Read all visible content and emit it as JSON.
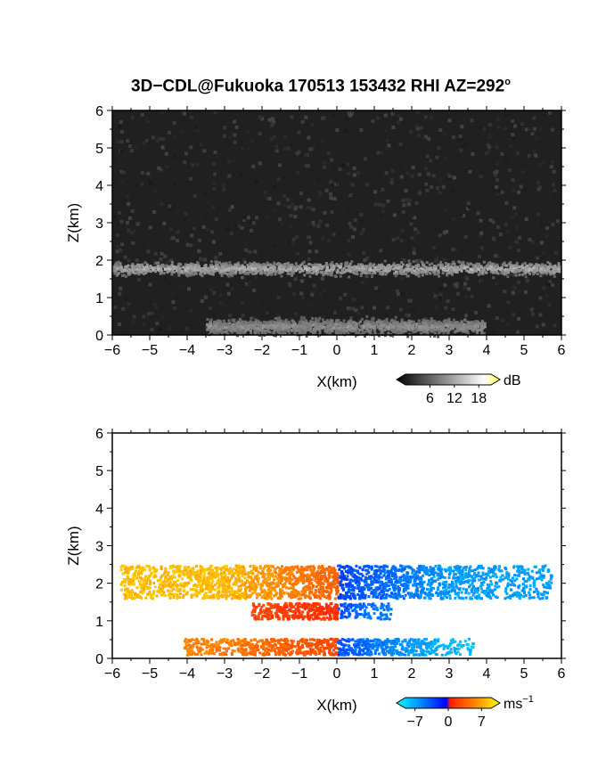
{
  "title": {
    "text": "3D−CDL@Fukuoka 170513 153432 RHI AZ=292",
    "degree_symbol": "o"
  },
  "colors": {
    "background": "#ffffff",
    "axis": "#000000",
    "panel_dark": "#202020",
    "velocity_scale": [
      "#00ffff",
      "#0080ff",
      "#0000ff",
      "#ff2000",
      "#ff8000",
      "#ffff00"
    ]
  },
  "chart_data": [
    {
      "type": "heatmap",
      "name": "reflectivity",
      "title": "",
      "xlabel": "X(km)",
      "ylabel": "Z(km)",
      "xlim": [
        -6,
        6
      ],
      "ylim": [
        0,
        6
      ],
      "xticks": [
        "−6",
        "−5",
        "−4",
        "−3",
        "−2",
        "−1",
        "0",
        "1",
        "2",
        "3",
        "4",
        "5",
        "6"
      ],
      "yticks": [
        "0",
        "1",
        "2",
        "3",
        "4",
        "5",
        "6"
      ],
      "colorbar": {
        "unit": "dB",
        "ticks": [
          "6",
          "12",
          "18"
        ],
        "range": [
          0,
          21
        ],
        "colors": "grayscale"
      },
      "layers": [
        {
          "z_center": 1.8,
          "z_width": 0.25,
          "x_range": [
            -6,
            6
          ],
          "value_db": 14
        },
        {
          "z_center": 0.25,
          "z_width": 0.3,
          "x_range": [
            -3.5,
            4
          ],
          "value_db": 10
        }
      ]
    },
    {
      "type": "heatmap",
      "name": "doppler-velocity",
      "title": "",
      "xlabel": "X(km)",
      "ylabel": "Z(km)",
      "xlim": [
        -6,
        6
      ],
      "ylim": [
        0,
        6
      ],
      "xticks": [
        "−6",
        "−5",
        "−4",
        "−3",
        "−2",
        "−1",
        "0",
        "1",
        "2",
        "3",
        "4",
        "5",
        "6"
      ],
      "yticks": [
        "0",
        "1",
        "2",
        "3",
        "4",
        "5",
        "6"
      ],
      "colorbar": {
        "unit": "ms",
        "unit_exponent": "−1",
        "ticks": [
          "−7",
          "0",
          "7"
        ],
        "range": [
          -9,
          9
        ]
      },
      "layers": [
        {
          "z_range": [
            1.55,
            2.5
          ],
          "x_range": [
            -5.8,
            5.8
          ],
          "velocity_left": 6,
          "velocity_right": -5
        },
        {
          "z_range": [
            1.0,
            1.5
          ],
          "x_range": [
            -2.3,
            1.5
          ],
          "velocity_left": 2,
          "velocity_right": -6
        },
        {
          "z_range": [
            0.05,
            0.55
          ],
          "x_range": [
            -4.1,
            3.7
          ],
          "velocity_left": 4,
          "velocity_right": -6
        }
      ]
    }
  ]
}
